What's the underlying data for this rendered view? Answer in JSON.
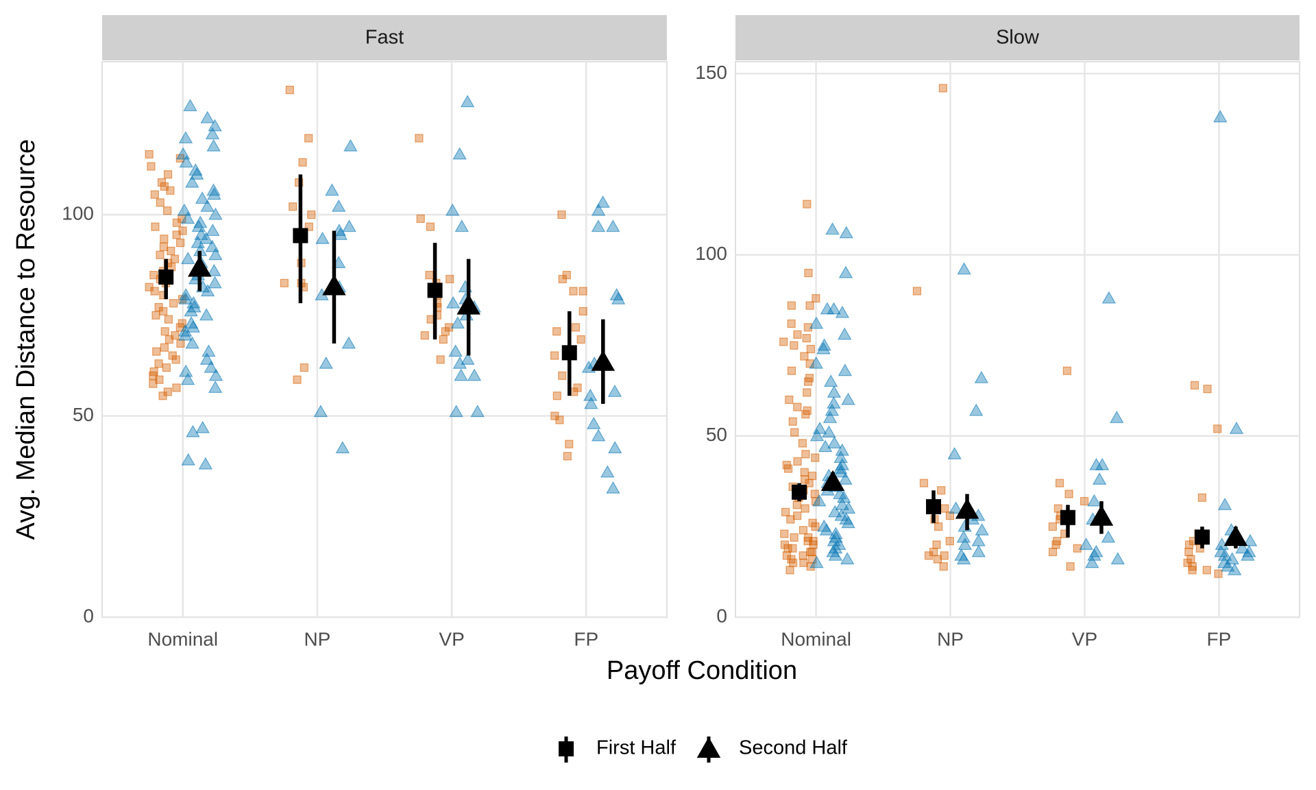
{
  "chart_data": {
    "type": "faceted-point-range",
    "x_label": "Payoff Condition",
    "y_label": "Avg. Median Distance to Resource",
    "categories": [
      "Nominal",
      "NP",
      "VP",
      "FP"
    ],
    "grid": true,
    "series": [
      {
        "name": "First Half",
        "marker": "square",
        "color": "#000000",
        "point_color": "#D55E00"
      },
      {
        "name": "Second Half",
        "marker": "triangle",
        "color": "#000000",
        "point_color": "#0072B2"
      }
    ],
    "facets": [
      {
        "title": "Fast",
        "ylim": [
          0,
          138
        ],
        "yticks": [
          0,
          50,
          100
        ],
        "series": [
          {
            "values": [
              84.5,
              94.8,
              81.2,
              65.7
            ],
            "lower": [
              79,
              78,
              69,
              55
            ],
            "upper": [
              89,
              110,
              93,
              76
            ],
            "points": [
              [
                115,
                114,
                112,
                110,
                108,
                107,
                106,
                105,
                103,
                101,
                99,
                98,
                97,
                96,
                95,
                94,
                93,
                92,
                91,
                90,
                89,
                88,
                87,
                86,
                85,
                84,
                83,
                82,
                81,
                80,
                79,
                78,
                77,
                76,
                75,
                74,
                73,
                72,
                71,
                70,
                69,
                68,
                67,
                66,
                65,
                64,
                63,
                62,
                61,
                60,
                59,
                58,
                57,
                56,
                55
              ],
              [
                131,
                119,
                113,
                108,
                102,
                100,
                97,
                94,
                88,
                83,
                83,
                82,
                62,
                59
              ],
              [
                119,
                99,
                97,
                85,
                84,
                83,
                80,
                78,
                77,
                75,
                74,
                72,
                71,
                70,
                69,
                64
              ],
              [
                100,
                85,
                84,
                81,
                81,
                76,
                72,
                71,
                69,
                65,
                60,
                57,
                56,
                55,
                50,
                49,
                43,
                40
              ]
            ]
          },
          {
            "values": [
              86.8,
              82.2,
              77.4,
              63.4
            ],
            "lower": [
              81,
              68,
              65,
              53
            ],
            "upper": [
              91,
              96,
              89,
              74
            ],
            "points": [
              [
                127,
                124,
                122,
                120,
                119,
                117,
                115,
                113,
                111,
                110,
                108,
                106,
                105,
                104,
                102,
                101,
                100,
                99,
                98,
                97,
                96,
                95,
                94,
                93,
                92,
                91,
                90,
                89,
                88,
                87,
                86,
                85,
                84,
                83,
                82,
                81,
                80,
                79,
                78,
                77,
                76,
                75,
                73,
                72,
                71,
                70,
                68,
                66,
                64,
                62,
                61,
                60,
                59,
                57,
                47,
                46,
                39,
                38
              ],
              [
                117,
                106,
                102,
                97,
                96,
                95,
                94,
                88,
                82,
                80,
                68,
                63,
                51,
                42
              ],
              [
                128,
                115,
                101,
                97,
                82,
                79,
                78,
                77,
                75,
                73,
                66,
                64,
                63,
                60,
                60,
                51,
                51
              ],
              [
                103,
                101,
                97,
                97,
                80,
                79,
                63,
                62,
                56,
                55,
                53,
                48,
                45,
                42,
                36,
                32
              ]
            ]
          }
        ]
      },
      {
        "title": "Slow",
        "ylim": [
          0,
          153.3
        ],
        "yticks": [
          0,
          50,
          100,
          150
        ],
        "series": [
          {
            "values": [
              34.5,
              30.5,
              27.5,
              22.1
            ],
            "lower": [
              32,
              26,
              22,
              19
            ],
            "upper": [
              37,
              35,
              31,
              25
            ],
            "points": [
              [
                114,
                95,
                88,
                86,
                86,
                81,
                80,
                78,
                77,
                76,
                75,
                74,
                72,
                70,
                68,
                66,
                65,
                62,
                60,
                58,
                57,
                56,
                54,
                51,
                48,
                45,
                44,
                43,
                42,
                41,
                40,
                39,
                38,
                37,
                36,
                35,
                34,
                33,
                32,
                31,
                30,
                29,
                28,
                27,
                26,
                25,
                24,
                23,
                22,
                22,
                21,
                21,
                20,
                20,
                19,
                19,
                18,
                18,
                17,
                17,
                16,
                16,
                15,
                15,
                14,
                13
              ],
              [
                146,
                90,
                37,
                35,
                30,
                28,
                27,
                25,
                21,
                20,
                18,
                17,
                17,
                16,
                14
              ],
              [
                68,
                37,
                34,
                32,
                30,
                28,
                27,
                25,
                23,
                21,
                20,
                19,
                18,
                14
              ],
              [
                64,
                63,
                52,
                33,
                23,
                22,
                21,
                20,
                19,
                18,
                16,
                15,
                14,
                13,
                13,
                12
              ]
            ]
          },
          {
            "values": [
              37.3,
              29.6,
              27.7,
              22.1
            ],
            "lower": [
              35,
              24,
              23,
              19
            ],
            "upper": [
              40,
              34,
              32,
              25
            ],
            "points": [
              [
                107,
                106,
                95,
                85,
                85,
                84,
                81,
                78,
                75,
                74,
                70,
                68,
                65,
                62,
                60,
                59,
                57,
                55,
                52,
                51,
                50,
                48,
                47,
                46,
                44,
                42,
                41,
                40,
                39,
                38,
                37,
                36,
                35,
                34,
                33,
                32,
                31,
                30,
                29,
                28,
                27,
                26,
                25,
                24,
                23,
                22,
                21,
                20,
                19,
                18,
                17,
                16,
                15
              ],
              [
                96,
                66,
                57,
                45,
                30,
                28,
                27,
                25,
                24,
                22,
                21,
                20,
                18,
                17,
                16
              ],
              [
                88,
                55,
                42,
                42,
                38,
                32,
                28,
                27,
                22,
                20,
                18,
                17,
                16,
                15
              ],
              [
                138,
                52,
                31,
                24,
                22,
                21,
                20,
                19,
                18,
                18,
                17,
                17,
                16,
                15,
                14,
                13
              ]
            ]
          }
        ]
      }
    ]
  }
}
